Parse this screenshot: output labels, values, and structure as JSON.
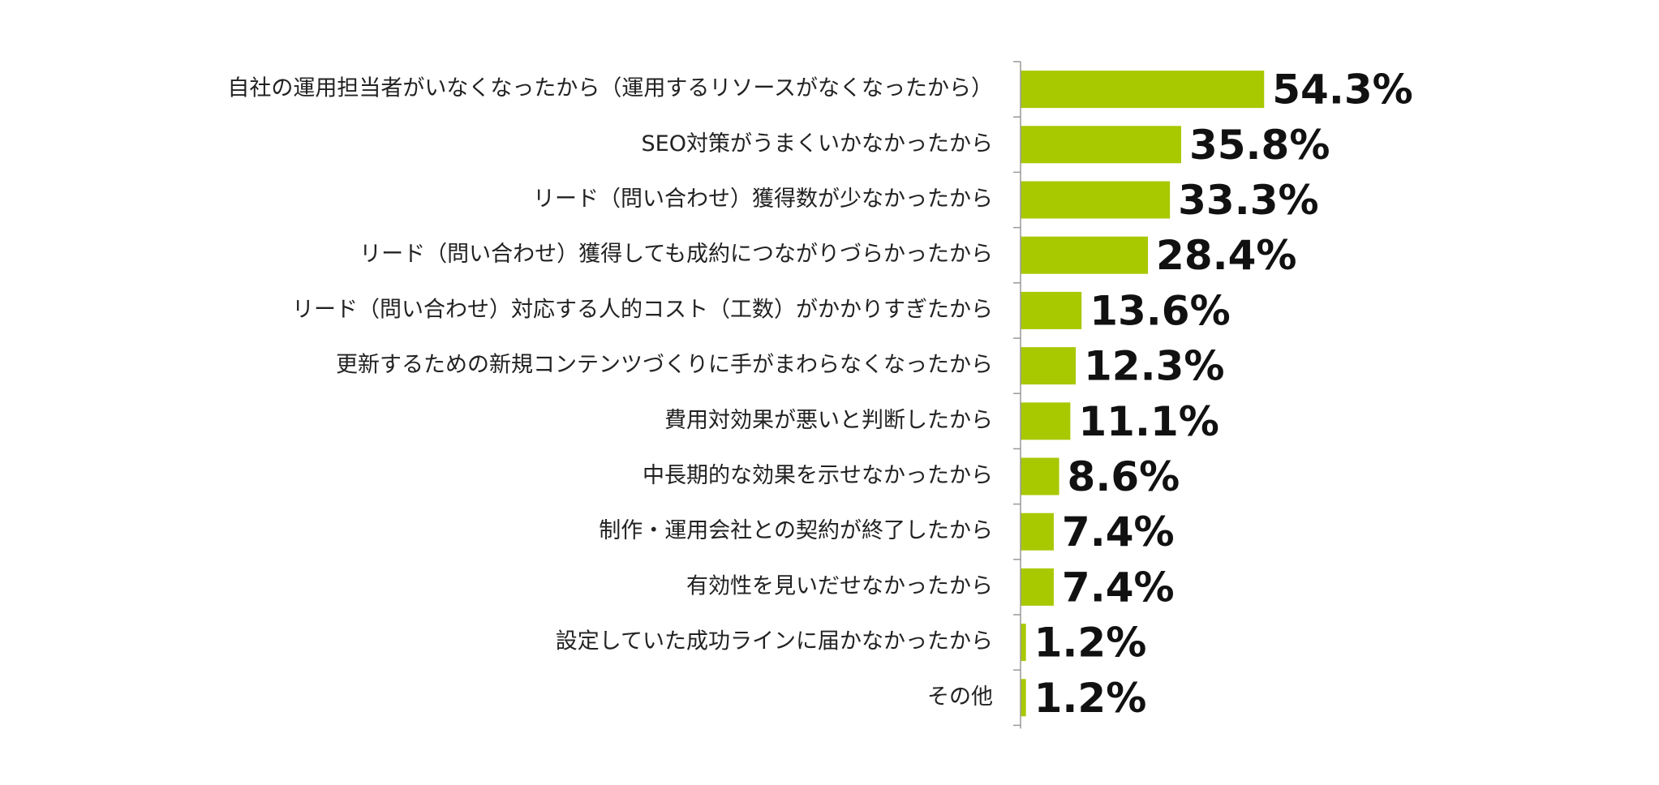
{
  "chart_data": {
    "type": "bar",
    "orientation": "horizontal",
    "categories": [
      "自社の運用担当者がいなくなったから（運用するリソースがなくなったから）",
      "SEO対策がうまくいかなかったから",
      "リード（問い合わせ）獲得数が少なかったから",
      "リード（問い合わせ）獲得しても成約につながりづらかったから",
      "リード（問い合わせ）対応する人的コスト（工数）がかかりすぎたから",
      "更新するための新規コンテンツづくりに手がまわらなくなったから",
      "費用対効果が悪いと判断したから",
      "中長期的な効果を示せなかったから",
      "制作・運用会社との契約が終了したから",
      "有効性を見いだせなかったから",
      "設定していた成功ラインに届かなかったから",
      "その他"
    ],
    "values": [
      54.3,
      35.8,
      33.3,
      28.4,
      13.6,
      12.3,
      11.1,
      8.6,
      7.4,
      7.4,
      1.2,
      1.2
    ],
    "value_labels": [
      "54.3%",
      "35.8%",
      "33.3%",
      "28.4%",
      "13.6%",
      "12.3%",
      "11.1%",
      "8.6%",
      "7.4%",
      "7.4%",
      "1.2%",
      "1.2%"
    ],
    "unit": "%",
    "bar_color": "#a8c800",
    "axis_color": "#999999",
    "grid": false,
    "legend": "none"
  }
}
